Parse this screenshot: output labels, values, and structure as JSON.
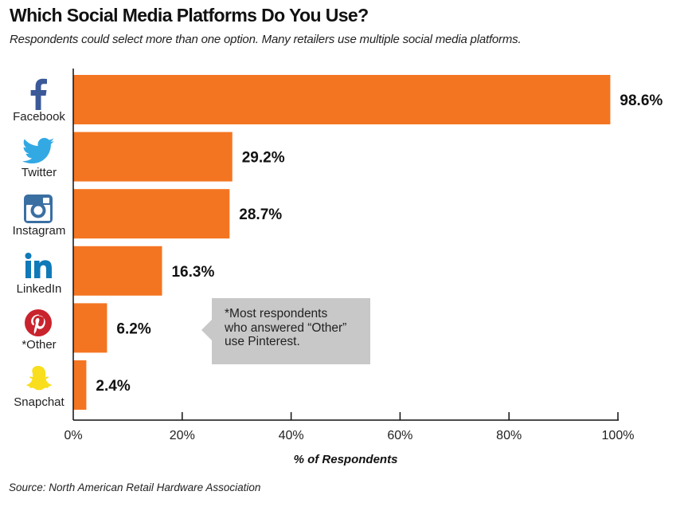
{
  "header": {
    "title": "Which Social Media Platforms Do You Use?",
    "subtitle": "Respondents could select more than one option. Many retailers use multiple social media platforms."
  },
  "chart_data": {
    "type": "bar",
    "orientation": "horizontal",
    "title": "Which Social Media Platforms Do You Use?",
    "subtitle": "Respondents could select more than one option. Many retailers use multiple social media platforms.",
    "categories": [
      "Facebook",
      "Twitter",
      "Instagram",
      "LinkedIn",
      "*Other",
      "Snapchat"
    ],
    "values": [
      98.6,
      29.2,
      28.7,
      16.3,
      6.2,
      2.4
    ],
    "value_labels": [
      "98.6%",
      "29.2%",
      "28.7%",
      "16.3%",
      "6.2%",
      "2.4%"
    ],
    "icons": [
      "facebook-icon",
      "twitter-icon",
      "instagram-icon",
      "linkedin-icon",
      "pinterest-icon",
      "snapchat-icon"
    ],
    "xlabel": "% of Respondents",
    "ylabel": "",
    "xlim": [
      0,
      100
    ],
    "xticks": [
      0,
      20,
      40,
      60,
      80,
      100
    ],
    "xtick_labels": [
      "0%",
      "20%",
      "40%",
      "60%",
      "80%",
      "100%"
    ],
    "grid": false,
    "legend": "none",
    "bar_color": "#f47521",
    "annotation": "*Most respondents who answered “Other” use Pinterest."
  },
  "colors": {
    "bar": "#f47521",
    "facebook": "#3b5998",
    "twitter": "#33a9e4",
    "instagram": "#3a6fa2",
    "linkedin": "#1079b7",
    "pinterest": "#c9232d",
    "snapchat": "#f8de1c",
    "callout": "#c8c8c9"
  },
  "callout": {
    "line1": "*Most respondents",
    "line2": "who answered “Other”",
    "line3": "use Pinterest."
  },
  "footer": {
    "source": "Source: North American Retail Hardware Association"
  }
}
